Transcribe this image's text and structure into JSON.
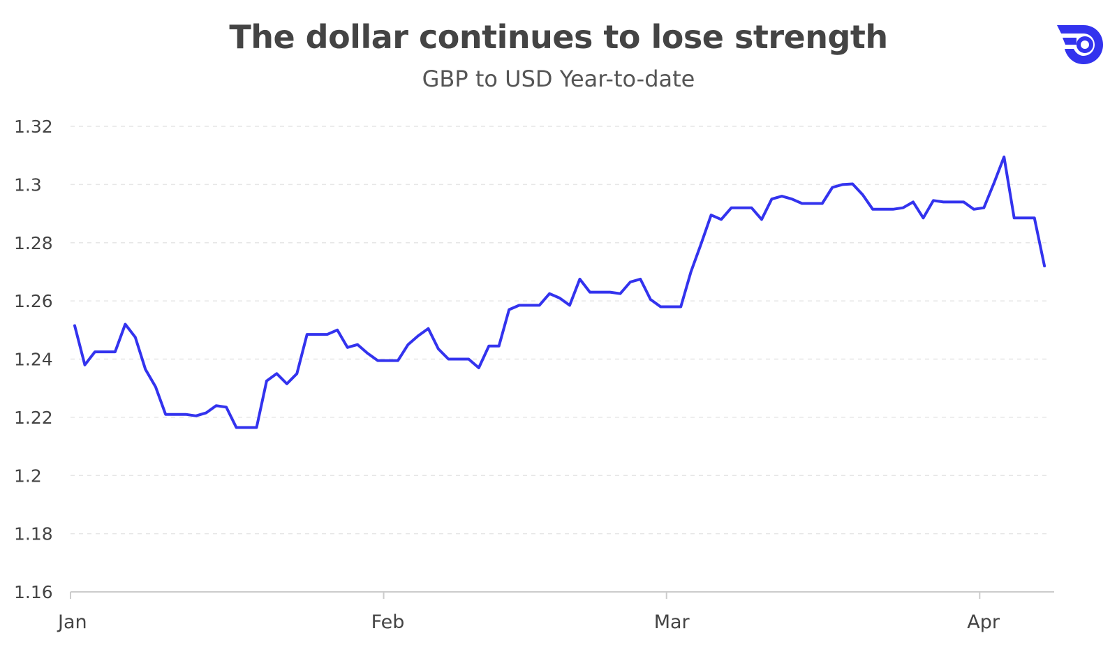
{
  "header": {
    "title": "The dollar continues to lose strength",
    "subtitle": "GBP to USD Year-to-date"
  },
  "colors": {
    "line": "#3333ee",
    "logo": "#3333ee",
    "grid": "#e6e6e6",
    "axis": "#cccccc",
    "text": "#444444"
  },
  "logo": {
    "icon": "company-logo-icon"
  },
  "chart_data": {
    "type": "line",
    "title": "The dollar continues to lose strength",
    "subtitle": "GBP to USD Year-to-date",
    "xlabel": "",
    "ylabel": "",
    "ylim": [
      1.16,
      1.32
    ],
    "y_ticks": [
      "1.16",
      "1.18",
      "1.2",
      "1.22",
      "1.24",
      "1.26",
      "1.28",
      "1.3",
      "1.32"
    ],
    "x_ticks": [
      {
        "label": "Jan",
        "day": 1
      },
      {
        "label": "Feb",
        "day": 32
      },
      {
        "label": "Mar",
        "day": 60
      },
      {
        "label": "Apr",
        "day": 91
      }
    ],
    "xlim_days": [
      1,
      98
    ],
    "grid": "horizontal dashed",
    "legend": "none",
    "series": [
      {
        "color": "#3333ee",
        "points": [
          [
            1,
            1.2515
          ],
          [
            2,
            1.238
          ],
          [
            3,
            1.2425
          ],
          [
            4,
            1.2425
          ],
          [
            5,
            1.2425
          ],
          [
            6,
            1.252
          ],
          [
            7,
            1.2475
          ],
          [
            8,
            1.2365
          ],
          [
            9,
            1.2305
          ],
          [
            10,
            1.221
          ],
          [
            11,
            1.221
          ],
          [
            12,
            1.221
          ],
          [
            13,
            1.2205
          ],
          [
            14,
            1.2215
          ],
          [
            15,
            1.224
          ],
          [
            16,
            1.2235
          ],
          [
            17,
            1.2165
          ],
          [
            18,
            1.2165
          ],
          [
            19,
            1.2165
          ],
          [
            20,
            1.2325
          ],
          [
            21,
            1.235
          ],
          [
            22,
            1.2315
          ],
          [
            23,
            1.235
          ],
          [
            24,
            1.2485
          ],
          [
            25,
            1.2485
          ],
          [
            26,
            1.2485
          ],
          [
            27,
            1.25
          ],
          [
            28,
            1.244
          ],
          [
            29,
            1.245
          ],
          [
            30,
            1.242
          ],
          [
            31,
            1.2395
          ],
          [
            32,
            1.2395
          ],
          [
            33,
            1.2395
          ],
          [
            34,
            1.245
          ],
          [
            35,
            1.248
          ],
          [
            36,
            1.2505
          ],
          [
            37,
            1.2435
          ],
          [
            38,
            1.24
          ],
          [
            39,
            1.24
          ],
          [
            40,
            1.24
          ],
          [
            41,
            1.237
          ],
          [
            42,
            1.2445
          ],
          [
            43,
            1.2445
          ],
          [
            44,
            1.257
          ],
          [
            45,
            1.2585
          ],
          [
            46,
            1.2585
          ],
          [
            47,
            1.2585
          ],
          [
            48,
            1.2625
          ],
          [
            49,
            1.261
          ],
          [
            50,
            1.2585
          ],
          [
            51,
            1.2675
          ],
          [
            52,
            1.263
          ],
          [
            53,
            1.263
          ],
          [
            54,
            1.263
          ],
          [
            55,
            1.2625
          ],
          [
            56,
            1.2665
          ],
          [
            57,
            1.2675
          ],
          [
            58,
            1.2605
          ],
          [
            59,
            1.258
          ],
          [
            60,
            1.258
          ],
          [
            61,
            1.258
          ],
          [
            62,
            1.27
          ],
          [
            63,
            1.2795
          ],
          [
            64,
            1.2895
          ],
          [
            65,
            1.288
          ],
          [
            66,
            1.292
          ],
          [
            67,
            1.292
          ],
          [
            68,
            1.292
          ],
          [
            69,
            1.288
          ],
          [
            70,
            1.295
          ],
          [
            71,
            1.296
          ],
          [
            72,
            1.295
          ],
          [
            73,
            1.2935
          ],
          [
            74,
            1.2935
          ],
          [
            75,
            1.2935
          ],
          [
            76,
            1.299
          ],
          [
            77,
            1.3
          ],
          [
            78,
            1.3002
          ],
          [
            79,
            1.2965
          ],
          [
            80,
            1.2915
          ],
          [
            81,
            1.2915
          ],
          [
            82,
            1.2915
          ],
          [
            83,
            1.292
          ],
          [
            84,
            1.294
          ],
          [
            85,
            1.2885
          ],
          [
            86,
            1.2945
          ],
          [
            87,
            1.294
          ],
          [
            88,
            1.294
          ],
          [
            89,
            1.294
          ],
          [
            90,
            1.2915
          ],
          [
            91,
            1.292
          ],
          [
            92,
            1.3005
          ],
          [
            93,
            1.3095
          ],
          [
            94,
            1.2885
          ],
          [
            95,
            1.2885
          ],
          [
            96,
            1.2885
          ],
          [
            97,
            1.272
          ]
        ]
      }
    ]
  }
}
